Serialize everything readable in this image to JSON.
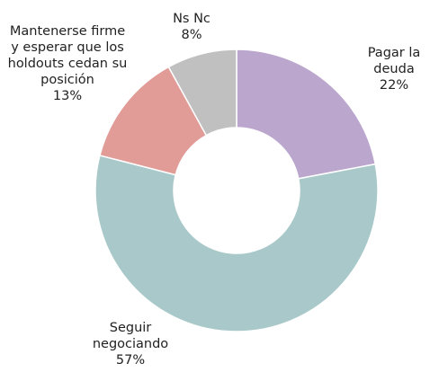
{
  "chart_data": {
    "type": "donut",
    "categories": [
      "Pagar la deuda",
      "Seguir negociando",
      "Mantenerse firme y esperar que los holdouts cedan su posición",
      "Ns Nc"
    ],
    "values": [
      22,
      57,
      13,
      8
    ],
    "value_labels": [
      "22%",
      "57%",
      "13%",
      "8%"
    ],
    "colors": [
      "#bba6cd",
      "#a9c8c9",
      "#e29c98",
      "#c0c0c0"
    ]
  }
}
